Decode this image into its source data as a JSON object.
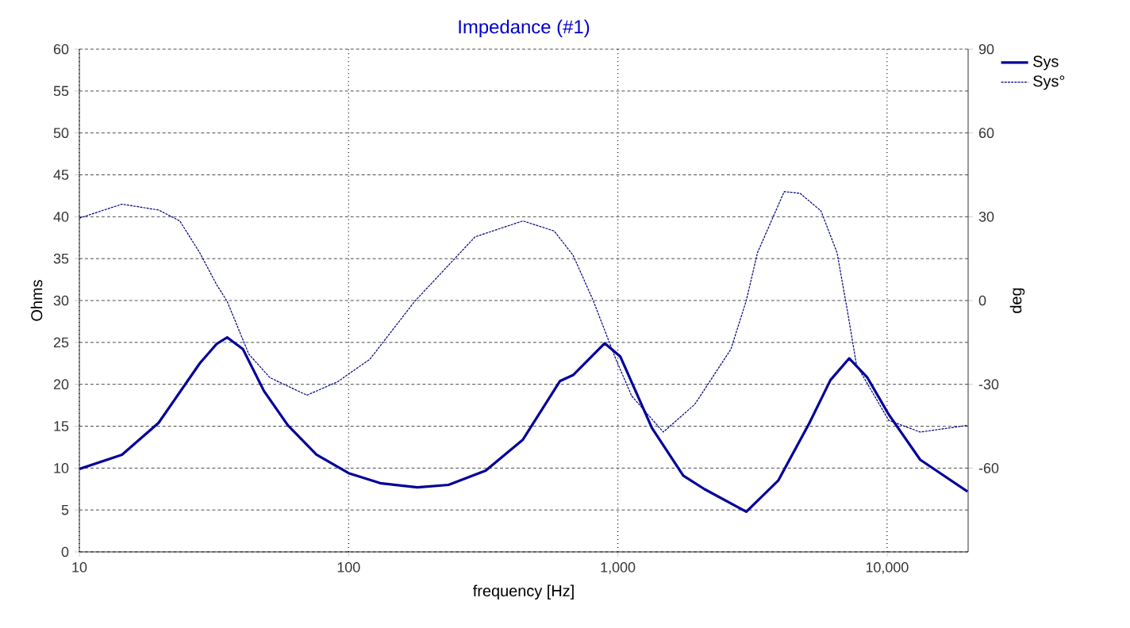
{
  "chart_data": {
    "type": "line",
    "title": "Impedance (#1)",
    "xlabel": "frequency [Hz]",
    "ylabel": "Ohms",
    "y2label": "deg",
    "log": "x",
    "grid": true,
    "legend": "top right",
    "xlim": [
      10,
      20000
    ],
    "xticks": [
      10,
      100,
      {
        "value": 1000,
        "label": "1,000"
      },
      {
        "value": 10000,
        "label": "10,000"
      }
    ],
    "ylim": [
      0,
      60
    ],
    "yticks": [
      0,
      5,
      10,
      15,
      20,
      25,
      30,
      35,
      40,
      45,
      50,
      55,
      60
    ],
    "y2lim": [
      -90,
      90
    ],
    "y2ticks": [
      -60,
      -30,
      0,
      30,
      60,
      90
    ],
    "series": [
      {
        "name": "Sys",
        "color": "#000099",
        "line_style": "solid",
        "x": [
          10,
          14.4,
          19.7,
          28,
          32.3,
          35.4,
          40.5,
          48.5,
          59.5,
          76,
          100,
          131,
          180,
          235,
          323,
          444,
          610,
          682,
          894,
          1022,
          1338,
          1750,
          2095,
          3000,
          3940,
          5150,
          6160,
          7230,
          8450,
          10140,
          13270,
          19900
        ],
        "values": [
          9.9,
          11.6,
          15.4,
          22.5,
          24.8,
          25.6,
          24.2,
          19.2,
          15.1,
          11.6,
          9.4,
          8.2,
          7.7,
          8.0,
          9.7,
          13.4,
          20.4,
          21.1,
          24.9,
          23.3,
          14.8,
          9.1,
          7.5,
          4.8,
          8.5,
          15.4,
          20.5,
          23.1,
          20.8,
          16.4,
          11.0,
          7.2
        ]
      },
      {
        "name": "Sys°",
        "color": "#000080",
        "line_style": "dashed",
        "axis": "y2",
        "x": [
          10,
          14.4,
          19.7,
          23.6,
          28,
          32.3,
          35.4,
          42.6,
          51,
          70,
          91,
          120,
          176,
          295,
          444,
          580,
          682,
          810,
          983,
          1126,
          1475,
          1930,
          2630,
          3000,
          3300,
          4150,
          4750,
          5680,
          6520,
          7120,
          7700,
          10140,
          13270,
          19900
        ],
        "values": [
          29.5,
          34.5,
          32.4,
          28.5,
          17.1,
          5.8,
          -0.3,
          -19.2,
          -27.6,
          -33.9,
          -29.1,
          -21,
          -0.3,
          22.8,
          28.5,
          24.9,
          16.2,
          0,
          -21,
          -34.2,
          -47.1,
          -37.2,
          -17.4,
          0,
          17.1,
          39,
          38.4,
          32.1,
          17.1,
          -3.6,
          -23.1,
          -42.9,
          -47.1,
          -44.7
        ]
      }
    ]
  }
}
